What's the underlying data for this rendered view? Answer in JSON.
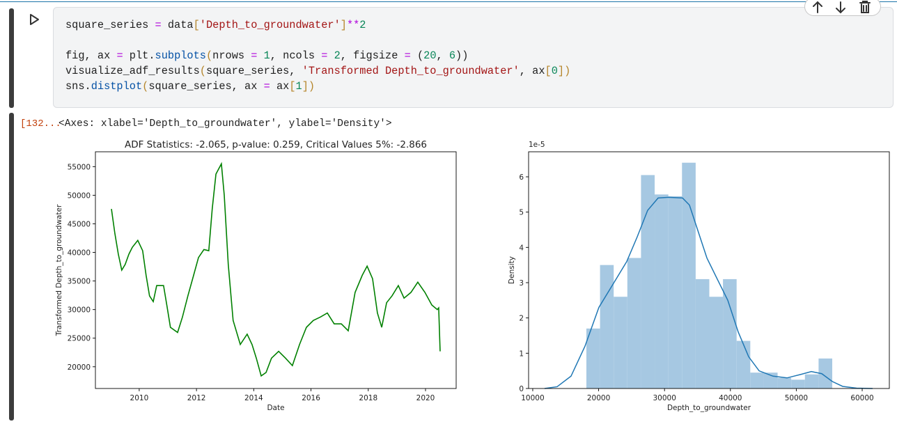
{
  "code": {
    "lines": [
      [
        [
          "square_series ",
          "#1f1f1f"
        ],
        [
          "=",
          "#af00db"
        ],
        [
          " data",
          "#1f1f1f"
        ],
        [
          "[",
          "#b5852a"
        ],
        [
          "'Depth_to_groundwater'",
          "#a31515"
        ],
        [
          "]",
          "#b5852a"
        ],
        [
          "**",
          "#af00db"
        ],
        [
          "2",
          "#098658"
        ]
      ],
      [],
      [
        [
          "fig, ax ",
          "#1f1f1f"
        ],
        [
          "=",
          "#af00db"
        ],
        [
          " plt.",
          "#1f1f1f"
        ],
        [
          "subplots",
          "#0451a5"
        ],
        [
          "(",
          "#b5852a"
        ],
        [
          "nrows ",
          "#1f1f1f"
        ],
        [
          "=",
          "#af00db"
        ],
        [
          " ",
          "#1f1f1f"
        ],
        [
          "1",
          "#098658"
        ],
        [
          ", ncols ",
          "#1f1f1f"
        ],
        [
          "=",
          "#af00db"
        ],
        [
          " ",
          "#1f1f1f"
        ],
        [
          "2",
          "#098658"
        ],
        [
          ", figsize ",
          "#1f1f1f"
        ],
        [
          "=",
          "#af00db"
        ],
        [
          " (",
          "#1f1f1f"
        ],
        [
          "20",
          "#098658"
        ],
        [
          ", ",
          "#1f1f1f"
        ],
        [
          "6",
          "#098658"
        ],
        [
          "))",
          "#1f1f1f"
        ]
      ],
      [
        [
          "visualize_adf_results",
          "#1f1f1f"
        ],
        [
          "(",
          "#b5852a"
        ],
        [
          "square_series, ",
          "#1f1f1f"
        ],
        [
          "'Transformed Depth_to_groundwater'",
          "#a31515"
        ],
        [
          ", ax",
          "#1f1f1f"
        ],
        [
          "[",
          "#b5852a"
        ],
        [
          "0",
          "#098658"
        ],
        [
          "]",
          "#b5852a"
        ],
        [
          ")",
          "#b5852a"
        ]
      ],
      [
        [
          "sns.",
          "#1f1f1f"
        ],
        [
          "distplot",
          "#0451a5"
        ],
        [
          "(",
          "#b5852a"
        ],
        [
          "square_series, ax ",
          "#1f1f1f"
        ],
        [
          "=",
          "#af00db"
        ],
        [
          " ax",
          "#1f1f1f"
        ],
        [
          "[",
          "#b5852a"
        ],
        [
          "1",
          "#098658"
        ],
        [
          "]",
          "#b5852a"
        ],
        [
          ")",
          "#b5852a"
        ]
      ]
    ]
  },
  "output": {
    "prompt": "[132...",
    "text": "<Axes: xlabel='Depth_to_groundwater', ylabel='Density'>"
  },
  "chart_data": [
    {
      "type": "line",
      "title": "ADF Statistics: -2.065, p-value: 0.259, Critical Values 5%: -2.866",
      "xlabel": "Date",
      "ylabel": "Transformed Depth_to_groundwater",
      "x": [
        2009.03,
        2009.15,
        2009.27,
        2009.39,
        2009.51,
        2009.64,
        2009.76,
        2009.95,
        2010.12,
        2010.24,
        2010.36,
        2010.49,
        2010.61,
        2010.85,
        2010.97,
        2011.09,
        2011.34,
        2011.51,
        2011.7,
        2011.9,
        2012.07,
        2012.26,
        2012.43,
        2012.55,
        2012.68,
        2012.87,
        2012.97,
        2013.11,
        2013.28,
        2013.53,
        2013.77,
        2013.94,
        2014.09,
        2014.26,
        2014.43,
        2014.62,
        2014.87,
        2015.11,
        2015.35,
        2015.6,
        2015.84,
        2016.08,
        2016.33,
        2016.57,
        2016.81,
        2017.06,
        2017.3,
        2017.54,
        2017.79,
        2017.96,
        2018.15,
        2018.32,
        2018.47,
        2018.64,
        2018.83,
        2019.05,
        2019.25,
        2019.49,
        2019.73,
        2019.98,
        2020.22,
        2020.41,
        2020.46,
        2020.51
      ],
      "values": [
        47600,
        43300,
        39700,
        36900,
        37900,
        39700,
        40900,
        42100,
        40300,
        36000,
        32400,
        31400,
        34200,
        34200,
        30600,
        26900,
        26000,
        28700,
        32400,
        36000,
        39100,
        40500,
        40300,
        47600,
        53700,
        55500,
        50000,
        37900,
        28100,
        23900,
        25700,
        23900,
        21500,
        18400,
        19000,
        21500,
        22700,
        21500,
        20200,
        23900,
        26900,
        28100,
        28700,
        29400,
        27500,
        27500,
        26300,
        33000,
        36000,
        37600,
        35400,
        29400,
        26900,
        31200,
        32400,
        34200,
        32000,
        33000,
        34800,
        33000,
        30800,
        30000,
        30300,
        22700
      ],
      "color": "#008000",
      "xlim": [
        2008.47,
        2021.07
      ],
      "xticks": [
        2010,
        2012,
        2014,
        2016,
        2018,
        2020
      ],
      "ylim": [
        16200,
        57600
      ],
      "yticks": [
        20000,
        25000,
        30000,
        35000,
        40000,
        45000,
        50000,
        55000
      ]
    },
    {
      "type": "histogram",
      "xlabel": "Depth_to_groundwater",
      "ylabel": "Density",
      "offset_label": "1e-5",
      "bins": [
        18140,
        20213,
        22286,
        24359,
        26432,
        28505,
        30578,
        32651,
        34724,
        36797,
        38870,
        40943,
        43016,
        45089,
        47162,
        49235,
        51308,
        53381,
        55454
      ],
      "values": [
        1.7,
        3.5,
        2.6,
        3.7,
        6.05,
        5.5,
        5.45,
        6.4,
        3.1,
        2.6,
        3.1,
        1.35,
        0.45,
        0.45,
        0.3,
        0.25,
        0.4,
        0.85
      ],
      "color": "#a6c8e2",
      "kde": {
        "color": "#1f77b4",
        "x": [
          11800,
          13700,
          15810,
          17930,
          20040,
          22160,
          24270,
          25860,
          27440,
          29030,
          30610,
          32730,
          33780,
          34840,
          36430,
          38010,
          39600,
          41190,
          42770,
          44360,
          46470,
          48590,
          50700,
          52280,
          53870,
          55450,
          57040,
          59150,
          61580
        ],
        "values": [
          0,
          0.05,
          0.35,
          1.2,
          2.3,
          2.95,
          3.6,
          4.3,
          5.05,
          5.4,
          5.42,
          5.4,
          5.2,
          4.6,
          3.7,
          3.1,
          2.5,
          1.6,
          0.9,
          0.5,
          0.35,
          0.3,
          0.4,
          0.48,
          0.42,
          0.2,
          0.06,
          0.01,
          0
        ]
      },
      "xlim": [
        9370,
        64120
      ],
      "xticks": [
        10000,
        20000,
        30000,
        40000,
        50000,
        60000
      ],
      "ylim": [
        0,
        6.71
      ],
      "yticks": [
        0,
        1,
        2,
        3,
        4,
        5,
        6
      ]
    }
  ]
}
